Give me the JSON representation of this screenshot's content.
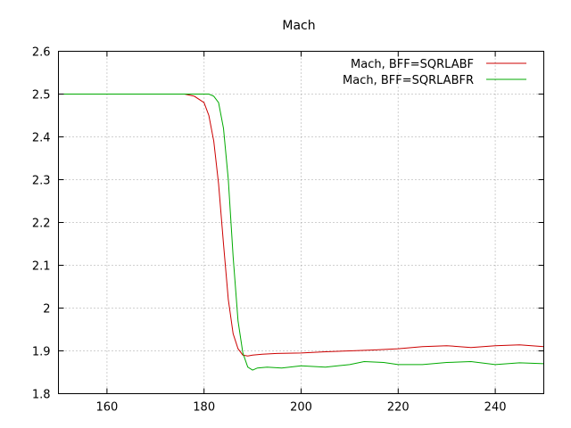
{
  "chart_data": {
    "type": "line",
    "title": "Mach",
    "xlabel": "",
    "ylabel": "",
    "xlim": [
      150,
      250
    ],
    "ylim": [
      1.8,
      2.6
    ],
    "xticks": [
      160,
      180,
      200,
      220,
      240
    ],
    "yticks": [
      1.8,
      1.9,
      2,
      2.1,
      2.2,
      2.3,
      2.4,
      2.5,
      2.6
    ],
    "grid": true,
    "legend_position": "top-right",
    "series": [
      {
        "name": "Mach, BFF=SQRLABF",
        "color": "#cc0000",
        "x": [
          150,
          176,
          178,
          180,
          181,
          182,
          183,
          184,
          185,
          186,
          187,
          188,
          189,
          190,
          192,
          195,
          200,
          205,
          210,
          215,
          220,
          225,
          230,
          235,
          240,
          245,
          250
        ],
        "y": [
          2.5,
          2.5,
          2.495,
          2.48,
          2.45,
          2.39,
          2.29,
          2.15,
          2.02,
          1.94,
          1.905,
          1.89,
          1.888,
          1.89,
          1.892,
          1.894,
          1.895,
          1.898,
          1.9,
          1.902,
          1.905,
          1.91,
          1.912,
          1.908,
          1.912,
          1.914,
          1.91
        ]
      },
      {
        "name": "Mach, BFF=SQRLABFR",
        "color": "#00aa00",
        "x": [
          150,
          181,
          182,
          183,
          184,
          185,
          186,
          187,
          188,
          189,
          190,
          191,
          193,
          196,
          200,
          205,
          210,
          213,
          217,
          220,
          225,
          230,
          235,
          240,
          245,
          250
        ],
        "y": [
          2.5,
          2.5,
          2.495,
          2.48,
          2.42,
          2.3,
          2.12,
          1.97,
          1.895,
          1.862,
          1.855,
          1.86,
          1.862,
          1.86,
          1.865,
          1.862,
          1.868,
          1.875,
          1.873,
          1.868,
          1.868,
          1.873,
          1.875,
          1.868,
          1.872,
          1.87
        ]
      }
    ]
  }
}
